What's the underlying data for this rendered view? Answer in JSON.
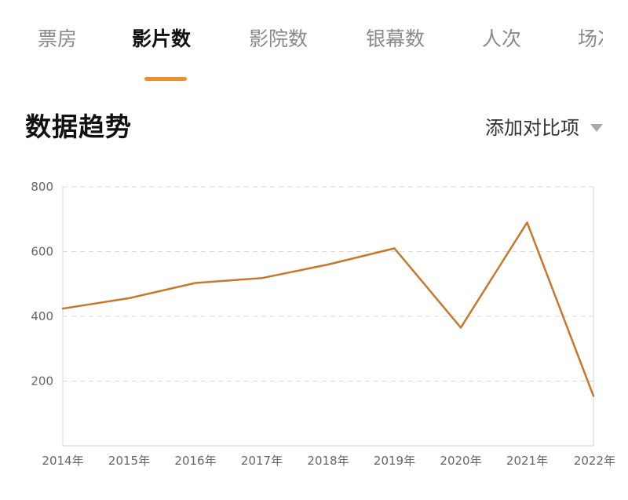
{
  "tabs": [
    {
      "label": "票房",
      "active": false
    },
    {
      "label": "影片数",
      "active": true
    },
    {
      "label": "影院数",
      "active": false
    },
    {
      "label": "银幕数",
      "active": false
    },
    {
      "label": "人次",
      "active": false
    },
    {
      "label": "场次",
      "active": false
    }
  ],
  "section": {
    "title": "数据趋势",
    "compare_label": "添加对比项"
  },
  "colors": {
    "accent": "#F08F2A",
    "line": "#C8782A",
    "grid": "#D9D9D9",
    "axis": "#D4D4D4"
  },
  "chart_data": {
    "type": "line",
    "x": [
      "2014年",
      "2015年",
      "2016年",
      "2017年",
      "2018年",
      "2019年",
      "2020年",
      "2021年",
      "2022年"
    ],
    "series": [
      {
        "values": [
          424,
          456,
          503,
          518,
          560,
          610,
          365,
          690,
          154
        ]
      }
    ],
    "yticks": [
      200,
      400,
      600,
      800
    ],
    "ylim": [
      0,
      800
    ],
    "grid": true,
    "legend": "none"
  }
}
